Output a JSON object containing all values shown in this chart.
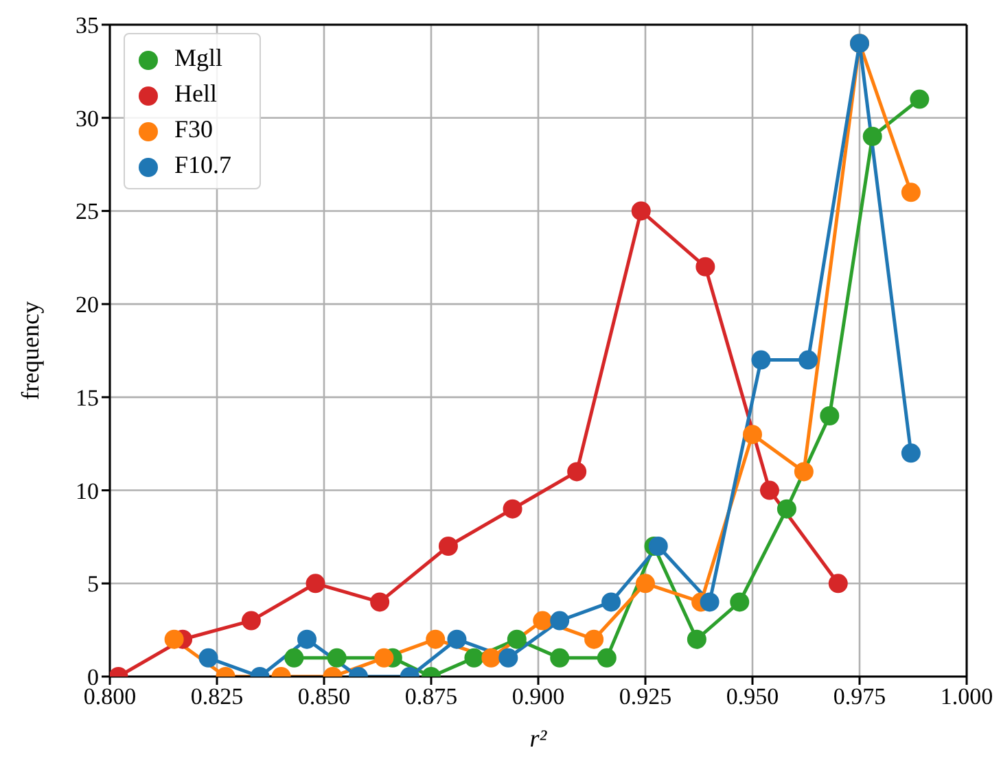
{
  "chart_data": {
    "type": "line",
    "xlabel": "r²",
    "ylabel": "frequency",
    "xlim": [
      0.8,
      1.0
    ],
    "xticks": [
      {
        "value": 0.8,
        "label": "0.800"
      },
      {
        "value": 0.825,
        "label": "0.825"
      },
      {
        "value": 0.85,
        "label": "0.850"
      },
      {
        "value": 0.875,
        "label": "0.875"
      },
      {
        "value": 0.9,
        "label": "0.900"
      },
      {
        "value": 0.925,
        "label": "0.925"
      },
      {
        "value": 0.95,
        "label": "0.950"
      },
      {
        "value": 0.975,
        "label": "0.975"
      },
      {
        "value": 1.0,
        "label": "1.000"
      }
    ],
    "ylim": [
      0,
      35
    ],
    "yticks": [
      0,
      5,
      10,
      15,
      20,
      25,
      30,
      35
    ],
    "grid": true,
    "legend": "top left",
    "marker": "circle",
    "series": [
      {
        "name": "Mgll",
        "color": "#2ca02c",
        "x": [
          0.843,
          0.853,
          0.866,
          0.875,
          0.885,
          0.895,
          0.905,
          0.916,
          0.927,
          0.937,
          0.947,
          0.958,
          0.968,
          0.978,
          0.989
        ],
        "values": [
          1,
          1,
          1,
          0,
          1,
          2,
          1,
          1,
          7,
          2,
          4,
          9,
          14,
          29,
          31
        ]
      },
      {
        "name": "Hell",
        "color": "#d62728",
        "x": [
          0.802,
          0.817,
          0.833,
          0.848,
          0.863,
          0.879,
          0.894,
          0.909,
          0.924,
          0.939,
          0.954,
          0.97
        ],
        "values": [
          0,
          2,
          3,
          5,
          4,
          7,
          9,
          11,
          25,
          22,
          10,
          5
        ]
      },
      {
        "name": "F30",
        "color": "#ff7f0e",
        "x": [
          0.815,
          0.827,
          0.84,
          0.852,
          0.864,
          0.876,
          0.889,
          0.901,
          0.913,
          0.925,
          0.938,
          0.95,
          0.962,
          0.975,
          0.987
        ],
        "values": [
          2,
          0,
          0,
          0,
          1,
          2,
          1,
          3,
          2,
          5,
          4,
          13,
          11,
          34,
          26
        ]
      },
      {
        "name": "F10.7",
        "color": "#1f77b4",
        "x": [
          0.823,
          0.835,
          0.846,
          0.858,
          0.87,
          0.881,
          0.893,
          0.905,
          0.917,
          0.928,
          0.94,
          0.952,
          0.963,
          0.975,
          0.987
        ],
        "values": [
          1,
          0,
          2,
          0,
          0,
          2,
          1,
          3,
          4,
          7,
          4,
          17,
          17,
          34,
          12
        ]
      }
    ]
  }
}
